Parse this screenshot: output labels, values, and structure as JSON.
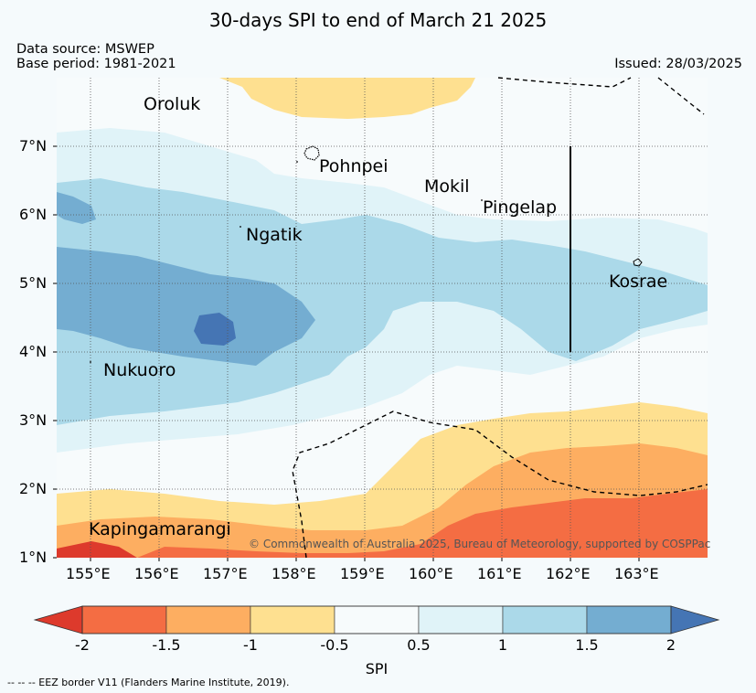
{
  "title": "30-days SPI to end of March 21 2025",
  "data_source": "Data source: MSWEP",
  "base_period": "Base period: 1981-2021",
  "issued": "Issued: 28/03/2025",
  "places": {
    "oroluk": "Oroluk",
    "pohnpei": "Pohnpei",
    "mokil": "Mokil",
    "pingelap": "Pingelap",
    "ngatik": "Ngatik",
    "kosrae": "Kosrae",
    "nukuoro": "Nukuoro",
    "kapingamarangi": "Kapingamarangi"
  },
  "lat_labels": [
    "7°N",
    "6°N",
    "5°N",
    "4°N",
    "3°N",
    "2°N",
    "1°N"
  ],
  "lon_labels": [
    "155°E",
    "156°E",
    "157°E",
    "158°E",
    "159°E",
    "160°E",
    "161°E",
    "162°E",
    "163°E"
  ],
  "copyright": "© Commonwealth of Australia 2025, Bureau of Meteorology, supported by COSPPac",
  "colorbar": {
    "title": "SPI",
    "ticks": [
      "-2",
      "-1.5",
      "-1",
      "-0.5",
      "0.5",
      "1",
      "1.5",
      "2"
    ],
    "colors": [
      "#dd3a2c",
      "#f46d43",
      "#fdae61",
      "#fee090",
      "#f7fbfc",
      "#e0f3f8",
      "#abd9e9",
      "#74add1",
      "#4575b4"
    ]
  },
  "footnote": "-- -- -- EEZ border V11 (Flanders Marine Institute, 2019)."
}
